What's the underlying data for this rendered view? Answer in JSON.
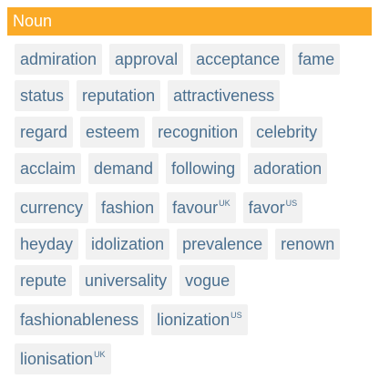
{
  "header": {
    "title": "Noun"
  },
  "rows": [
    [
      {
        "word": "admiration"
      },
      {
        "word": "approval"
      },
      {
        "word": "acceptance"
      },
      {
        "word": "fame"
      }
    ],
    [
      {
        "word": "status"
      },
      {
        "word": "reputation"
      },
      {
        "word": "attractiveness"
      }
    ],
    [
      {
        "word": "regard"
      },
      {
        "word": "esteem"
      },
      {
        "word": "recognition"
      },
      {
        "word": "celebrity"
      }
    ],
    [
      {
        "word": "acclaim"
      },
      {
        "word": "demand"
      },
      {
        "word": "following"
      },
      {
        "word": "adoration"
      }
    ],
    [
      {
        "word": "currency"
      },
      {
        "word": "fashion"
      },
      {
        "word": "favour",
        "region": "UK"
      },
      {
        "word": "favor",
        "region": "US"
      }
    ],
    [
      {
        "word": "heyday"
      },
      {
        "word": "idolization"
      },
      {
        "word": "prevalence"
      },
      {
        "word": "renown"
      }
    ],
    [
      {
        "word": "repute"
      },
      {
        "word": "universality"
      },
      {
        "word": "vogue"
      }
    ],
    [
      {
        "word": "fashionableness"
      },
      {
        "word": "lionization",
        "region": "US"
      }
    ],
    [
      {
        "word": "lionisation",
        "region": "UK"
      }
    ]
  ]
}
